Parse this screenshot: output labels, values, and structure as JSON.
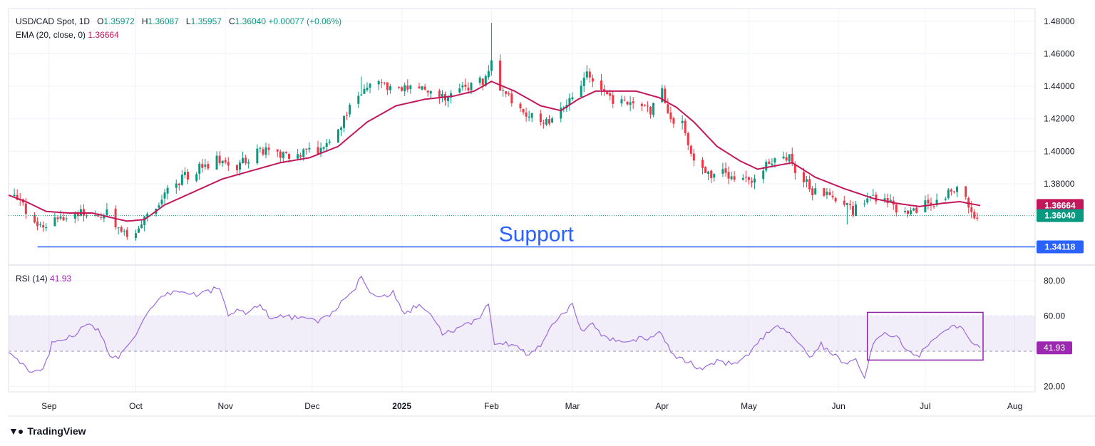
{
  "header": {
    "symbol": "USD/CAD Spot, 1D",
    "o_label": "O",
    "o": "1.35972",
    "h_label": "H",
    "h": "1.36087",
    "l_label": "L",
    "l": "1.35957",
    "c_label": "C",
    "c": "1.36040",
    "change": "+0.00077 (+0.06%)"
  },
  "ema_legend": {
    "label": "EMA (20, close, 0)",
    "value": "1.36664"
  },
  "rsi_legend": {
    "label": "RSI (14)",
    "value": "41.93"
  },
  "branding": {
    "name": "TradingView",
    "icon": "tradingview-logo"
  },
  "colors": {
    "up": "#089981",
    "down": "#f23645",
    "ema": "#c2185b",
    "rsi": "#9c27b0",
    "support": "#2962ff"
  },
  "chart_data": [
    {
      "type": "candlestick",
      "title": "USD/CAD Spot, 1D",
      "ylim": [
        1.33,
        1.483
      ],
      "y_ticks": [
        "1.48000",
        "1.46000",
        "1.44000",
        "1.42000",
        "1.40000",
        "1.38000"
      ],
      "x_ticks": [
        {
          "label": "Sep",
          "day": 5
        },
        {
          "label": "Oct",
          "day": 35
        },
        {
          "label": "Nov",
          "day": 66
        },
        {
          "label": "Dec",
          "day": 96
        },
        {
          "label": "2025",
          "day": 127
        },
        {
          "label": "Feb",
          "day": 158
        },
        {
          "label": "Mar",
          "day": 186
        },
        {
          "label": "Apr",
          "day": 217
        },
        {
          "label": "May",
          "day": 247
        },
        {
          "label": "Jun",
          "day": 278
        },
        {
          "label": "Jul",
          "day": 308
        },
        {
          "label": "Aug",
          "day": 339
        }
      ],
      "x_range": [
        -9,
        346
      ],
      "close_anchors": [
        [
          -9,
          1.373
        ],
        [
          -5,
          1.367
        ],
        [
          0,
          1.357
        ],
        [
          3,
          1.351
        ],
        [
          8,
          1.357
        ],
        [
          13,
          1.362
        ],
        [
          20,
          1.362
        ],
        [
          25,
          1.361
        ],
        [
          30,
          1.351
        ],
        [
          33,
          1.348
        ],
        [
          37,
          1.355
        ],
        [
          43,
          1.369
        ],
        [
          50,
          1.382
        ],
        [
          57,
          1.389
        ],
        [
          63,
          1.394
        ],
        [
          68,
          1.39
        ],
        [
          75,
          1.396
        ],
        [
          80,
          1.402
        ],
        [
          86,
          1.398
        ],
        [
          90,
          1.397
        ],
        [
          96,
          1.399
        ],
        [
          101,
          1.404
        ],
        [
          106,
          1.418
        ],
        [
          110,
          1.428
        ],
        [
          113,
          1.438
        ],
        [
          118,
          1.442
        ],
        [
          124,
          1.438
        ],
        [
          130,
          1.442
        ],
        [
          137,
          1.436
        ],
        [
          144,
          1.434
        ],
        [
          150,
          1.44
        ],
        [
          155,
          1.444
        ],
        [
          158,
          1.454
        ],
        [
          160,
          1.436
        ],
        [
          165,
          1.433
        ],
        [
          170,
          1.424
        ],
        [
          173,
          1.418
        ],
        [
          178,
          1.419
        ],
        [
          183,
          1.43
        ],
        [
          188,
          1.44
        ],
        [
          191,
          1.447
        ],
        [
          194,
          1.444
        ],
        [
          198,
          1.432
        ],
        [
          203,
          1.431
        ],
        [
          208,
          1.433
        ],
        [
          213,
          1.426
        ],
        [
          217,
          1.436
        ],
        [
          220,
          1.42
        ],
        [
          224,
          1.418
        ],
        [
          228,
          1.395
        ],
        [
          232,
          1.387
        ],
        [
          238,
          1.386
        ],
        [
          245,
          1.381
        ],
        [
          250,
          1.38
        ],
        [
          253,
          1.392
        ],
        [
          257,
          1.399
        ],
        [
          261,
          1.395
        ],
        [
          265,
          1.385
        ],
        [
          269,
          1.376
        ],
        [
          273,
          1.374
        ],
        [
          277,
          1.371
        ],
        [
          283,
          1.363
        ],
        [
          287,
          1.37
        ],
        [
          292,
          1.371
        ],
        [
          295,
          1.368
        ],
        [
          300,
          1.362
        ],
        [
          303,
          1.363
        ],
        [
          307,
          1.368
        ],
        [
          312,
          1.369
        ],
        [
          316,
          1.374
        ],
        [
          320,
          1.376
        ],
        [
          322,
          1.37
        ],
        [
          324,
          1.36
        ],
        [
          327,
          1.3604
        ]
      ],
      "wick_spikes": [
        {
          "day": 158,
          "high": 1.479
        },
        {
          "day": 217,
          "high": 1.441
        },
        {
          "day": 191,
          "high": 1.453
        },
        {
          "day": 113,
          "high": 1.446
        },
        {
          "day": 281,
          "low": 1.355
        },
        {
          "day": 26,
          "low": 1.347
        }
      ],
      "ema": {
        "name": "EMA (20, close, 0)",
        "anchors": [
          [
            -9,
            1.373
          ],
          [
            -3,
            1.369
          ],
          [
            4,
            1.363
          ],
          [
            12,
            1.362
          ],
          [
            20,
            1.362
          ],
          [
            27,
            1.359
          ],
          [
            32,
            1.357
          ],
          [
            38,
            1.358
          ],
          [
            45,
            1.367
          ],
          [
            55,
            1.375
          ],
          [
            65,
            1.383
          ],
          [
            75,
            1.388
          ],
          [
            85,
            1.393
          ],
          [
            95,
            1.396
          ],
          [
            105,
            1.403
          ],
          [
            115,
            1.418
          ],
          [
            125,
            1.428
          ],
          [
            135,
            1.432
          ],
          [
            145,
            1.434
          ],
          [
            152,
            1.437
          ],
          [
            158,
            1.443
          ],
          [
            166,
            1.437
          ],
          [
            175,
            1.428
          ],
          [
            182,
            1.425
          ],
          [
            188,
            1.432
          ],
          [
            194,
            1.437
          ],
          [
            200,
            1.437
          ],
          [
            208,
            1.437
          ],
          [
            216,
            1.433
          ],
          [
            222,
            1.427
          ],
          [
            228,
            1.418
          ],
          [
            236,
            1.403
          ],
          [
            244,
            1.394
          ],
          [
            250,
            1.389
          ],
          [
            256,
            1.391
          ],
          [
            262,
            1.393
          ],
          [
            270,
            1.384
          ],
          [
            280,
            1.377
          ],
          [
            290,
            1.371
          ],
          [
            298,
            1.368
          ],
          [
            306,
            1.366
          ],
          [
            314,
            1.368
          ],
          [
            320,
            1.369
          ],
          [
            327,
            1.3666
          ]
        ],
        "last_value": "1.36664"
      },
      "last_price": "1.36040",
      "annotations": [
        {
          "type": "horizontal_line",
          "value": 1.34118,
          "label": "1.34118",
          "text": "Support",
          "from_day": 1
        }
      ]
    },
    {
      "type": "line",
      "title": "RSI (14)",
      "ylim": [
        17,
        88
      ],
      "y_ticks": [
        "80.00",
        "60.00",
        "20.00"
      ],
      "band": [
        40,
        60
      ],
      "anchors": [
        [
          -9,
          40
        ],
        [
          -5,
          33
        ],
        [
          -1,
          28
        ],
        [
          3,
          30
        ],
        [
          6,
          44
        ],
        [
          10,
          47
        ],
        [
          14,
          50
        ],
        [
          18,
          55
        ],
        [
          22,
          52
        ],
        [
          26,
          38
        ],
        [
          29,
          36
        ],
        [
          32,
          44
        ],
        [
          36,
          52
        ],
        [
          40,
          63
        ],
        [
          44,
          70
        ],
        [
          48,
          74
        ],
        [
          52,
          73
        ],
        [
          56,
          72
        ],
        [
          60,
          74
        ],
        [
          64,
          76
        ],
        [
          67,
          60
        ],
        [
          70,
          63
        ],
        [
          74,
          62
        ],
        [
          78,
          67
        ],
        [
          82,
          58
        ],
        [
          86,
          60
        ],
        [
          90,
          59
        ],
        [
          94,
          58
        ],
        [
          98,
          57
        ],
        [
          102,
          61
        ],
        [
          106,
          67
        ],
        [
          110,
          73
        ],
        [
          113,
          82
        ],
        [
          116,
          74
        ],
        [
          120,
          71
        ],
        [
          124,
          73
        ],
        [
          128,
          60
        ],
        [
          132,
          66
        ],
        [
          137,
          61
        ],
        [
          141,
          50
        ],
        [
          145,
          52
        ],
        [
          150,
          55
        ],
        [
          154,
          60
        ],
        [
          157,
          67
        ],
        [
          159,
          45
        ],
        [
          163,
          44
        ],
        [
          167,
          42
        ],
        [
          171,
          38
        ],
        [
          175,
          44
        ],
        [
          179,
          55
        ],
        [
          183,
          62
        ],
        [
          186,
          66
        ],
        [
          189,
          52
        ],
        [
          193,
          55
        ],
        [
          197,
          48
        ],
        [
          202,
          46
        ],
        [
          207,
          47
        ],
        [
          212,
          47
        ],
        [
          216,
          52
        ],
        [
          219,
          43
        ],
        [
          222,
          36
        ],
        [
          226,
          34
        ],
        [
          230,
          30
        ],
        [
          236,
          34
        ],
        [
          242,
          33
        ],
        [
          248,
          40
        ],
        [
          252,
          48
        ],
        [
          256,
          54
        ],
        [
          260,
          52
        ],
        [
          264,
          46
        ],
        [
          268,
          36
        ],
        [
          272,
          44
        ],
        [
          276,
          38
        ],
        [
          280,
          34
        ],
        [
          284,
          35
        ],
        [
          287,
          26
        ],
        [
          290,
          45
        ],
        [
          294,
          50
        ],
        [
          298,
          48
        ],
        [
          302,
          40
        ],
        [
          306,
          38
        ],
        [
          310,
          46
        ],
        [
          314,
          52
        ],
        [
          318,
          55
        ],
        [
          321,
          53
        ],
        [
          324,
          44
        ],
        [
          327,
          41.93
        ]
      ],
      "last_value": "41.93",
      "highlight_box": {
        "from_day": 288,
        "to_day": 328,
        "from_value": 35,
        "to_value": 62
      }
    }
  ]
}
